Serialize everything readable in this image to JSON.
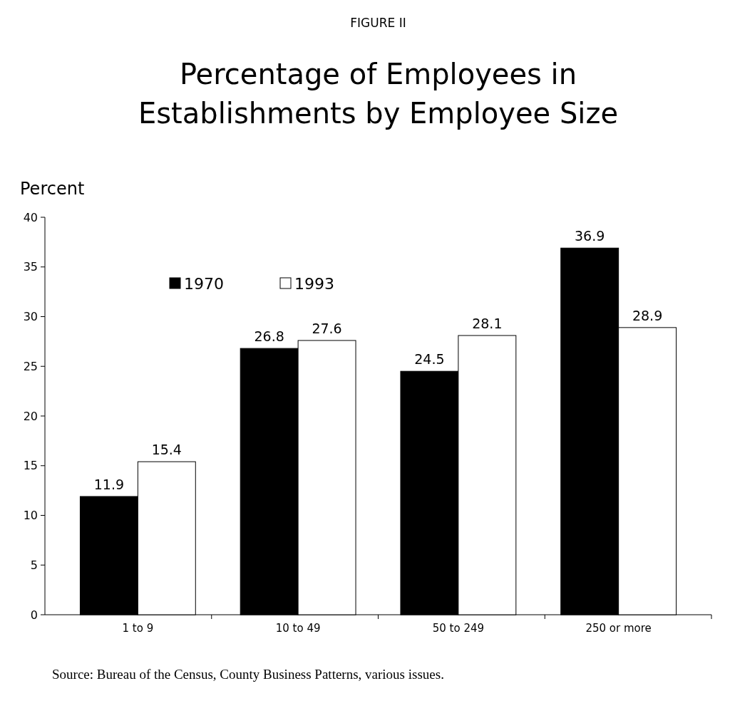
{
  "chart_data": {
    "type": "bar",
    "subtitle": "FIGURE II",
    "title": "Percentage of Employees in Establishments by Employee Size",
    "ylabel": "Percent",
    "categories": [
      "1 to 9",
      "10 to 49",
      "50 to 249",
      "250 or more"
    ],
    "series": [
      {
        "name": "1970",
        "color": "#000000",
        "values": [
          11.9,
          26.8,
          24.5,
          36.9
        ]
      },
      {
        "name": "1993",
        "color": "#ffffff",
        "values": [
          15.4,
          27.6,
          28.1,
          28.9
        ]
      }
    ],
    "ylim": [
      0,
      40
    ],
    "yticks": [
      0,
      5,
      10,
      15,
      20,
      25,
      30,
      35,
      40
    ],
    "grid": false,
    "legend": "top left",
    "data_labels": true,
    "annotations": [
      "Source:  Bureau of the Census, County Business Patterns, various issues."
    ]
  }
}
